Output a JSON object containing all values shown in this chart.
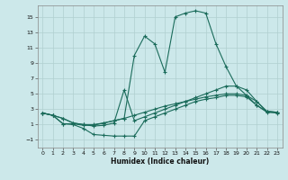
{
  "xlabel": "Humidex (Indice chaleur)",
  "bg_color": "#cce8ea",
  "grid_color": "#b0cfcf",
  "line_color": "#1a6b5a",
  "xlim": [
    -0.5,
    23.5
  ],
  "ylim": [
    -2,
    16.5
  ],
  "xticks": [
    0,
    1,
    2,
    3,
    4,
    5,
    6,
    7,
    8,
    9,
    10,
    11,
    12,
    13,
    14,
    15,
    16,
    17,
    18,
    19,
    20,
    21,
    22,
    23
  ],
  "yticks": [
    -1,
    1,
    3,
    5,
    7,
    9,
    11,
    13,
    15
  ],
  "curve_main_x": [
    0,
    1,
    2,
    3,
    4,
    5,
    6,
    7,
    8,
    9,
    10,
    11,
    12,
    13,
    14,
    15,
    16,
    17,
    18,
    19,
    20,
    21,
    22,
    23
  ],
  "curve_main_y": [
    2.5,
    2.2,
    1.1,
    1.1,
    0.9,
    0.9,
    1.2,
    1.5,
    1.8,
    10.0,
    12.5,
    11.5,
    7.8,
    15.0,
    15.5,
    15.8,
    15.5,
    11.5,
    8.5,
    6.0,
    4.8,
    3.5,
    2.7,
    2.6
  ],
  "curve_spike_x": [
    0,
    1,
    2,
    3,
    4,
    5,
    6,
    7,
    8,
    9,
    10,
    11,
    12,
    13,
    14,
    15,
    16,
    17,
    18,
    19,
    20,
    21,
    22,
    23
  ],
  "curve_spike_y": [
    2.5,
    2.2,
    1.8,
    1.2,
    1.0,
    0.8,
    0.9,
    1.2,
    5.5,
    1.5,
    2.0,
    2.5,
    3.0,
    3.5,
    4.0,
    4.5,
    5.0,
    5.5,
    6.0,
    6.0,
    5.5,
    4.0,
    2.7,
    2.6
  ],
  "curve_upper_x": [
    0,
    1,
    2,
    3,
    4,
    5,
    6,
    7,
    8,
    9,
    10,
    11,
    12,
    13,
    14,
    15,
    16,
    17,
    18,
    19,
    20,
    21,
    22,
    23
  ],
  "curve_upper_y": [
    2.5,
    2.2,
    1.8,
    1.2,
    1.0,
    1.0,
    1.2,
    1.5,
    1.8,
    2.2,
    2.6,
    3.0,
    3.4,
    3.7,
    4.0,
    4.3,
    4.6,
    4.8,
    5.0,
    5.0,
    4.8,
    4.0,
    2.7,
    2.6
  ],
  "curve_lower_x": [
    0,
    1,
    2,
    3,
    4,
    5,
    6,
    7,
    8,
    9,
    10,
    11,
    12,
    13,
    14,
    15,
    16,
    17,
    18,
    19,
    20,
    21,
    22,
    23
  ],
  "curve_lower_y": [
    2.5,
    2.2,
    1.1,
    1.0,
    0.5,
    -0.3,
    -0.4,
    -0.5,
    -0.5,
    -0.5,
    1.5,
    2.0,
    2.5,
    3.0,
    3.5,
    4.0,
    4.3,
    4.5,
    4.8,
    4.8,
    4.6,
    3.5,
    2.6,
    2.5
  ]
}
